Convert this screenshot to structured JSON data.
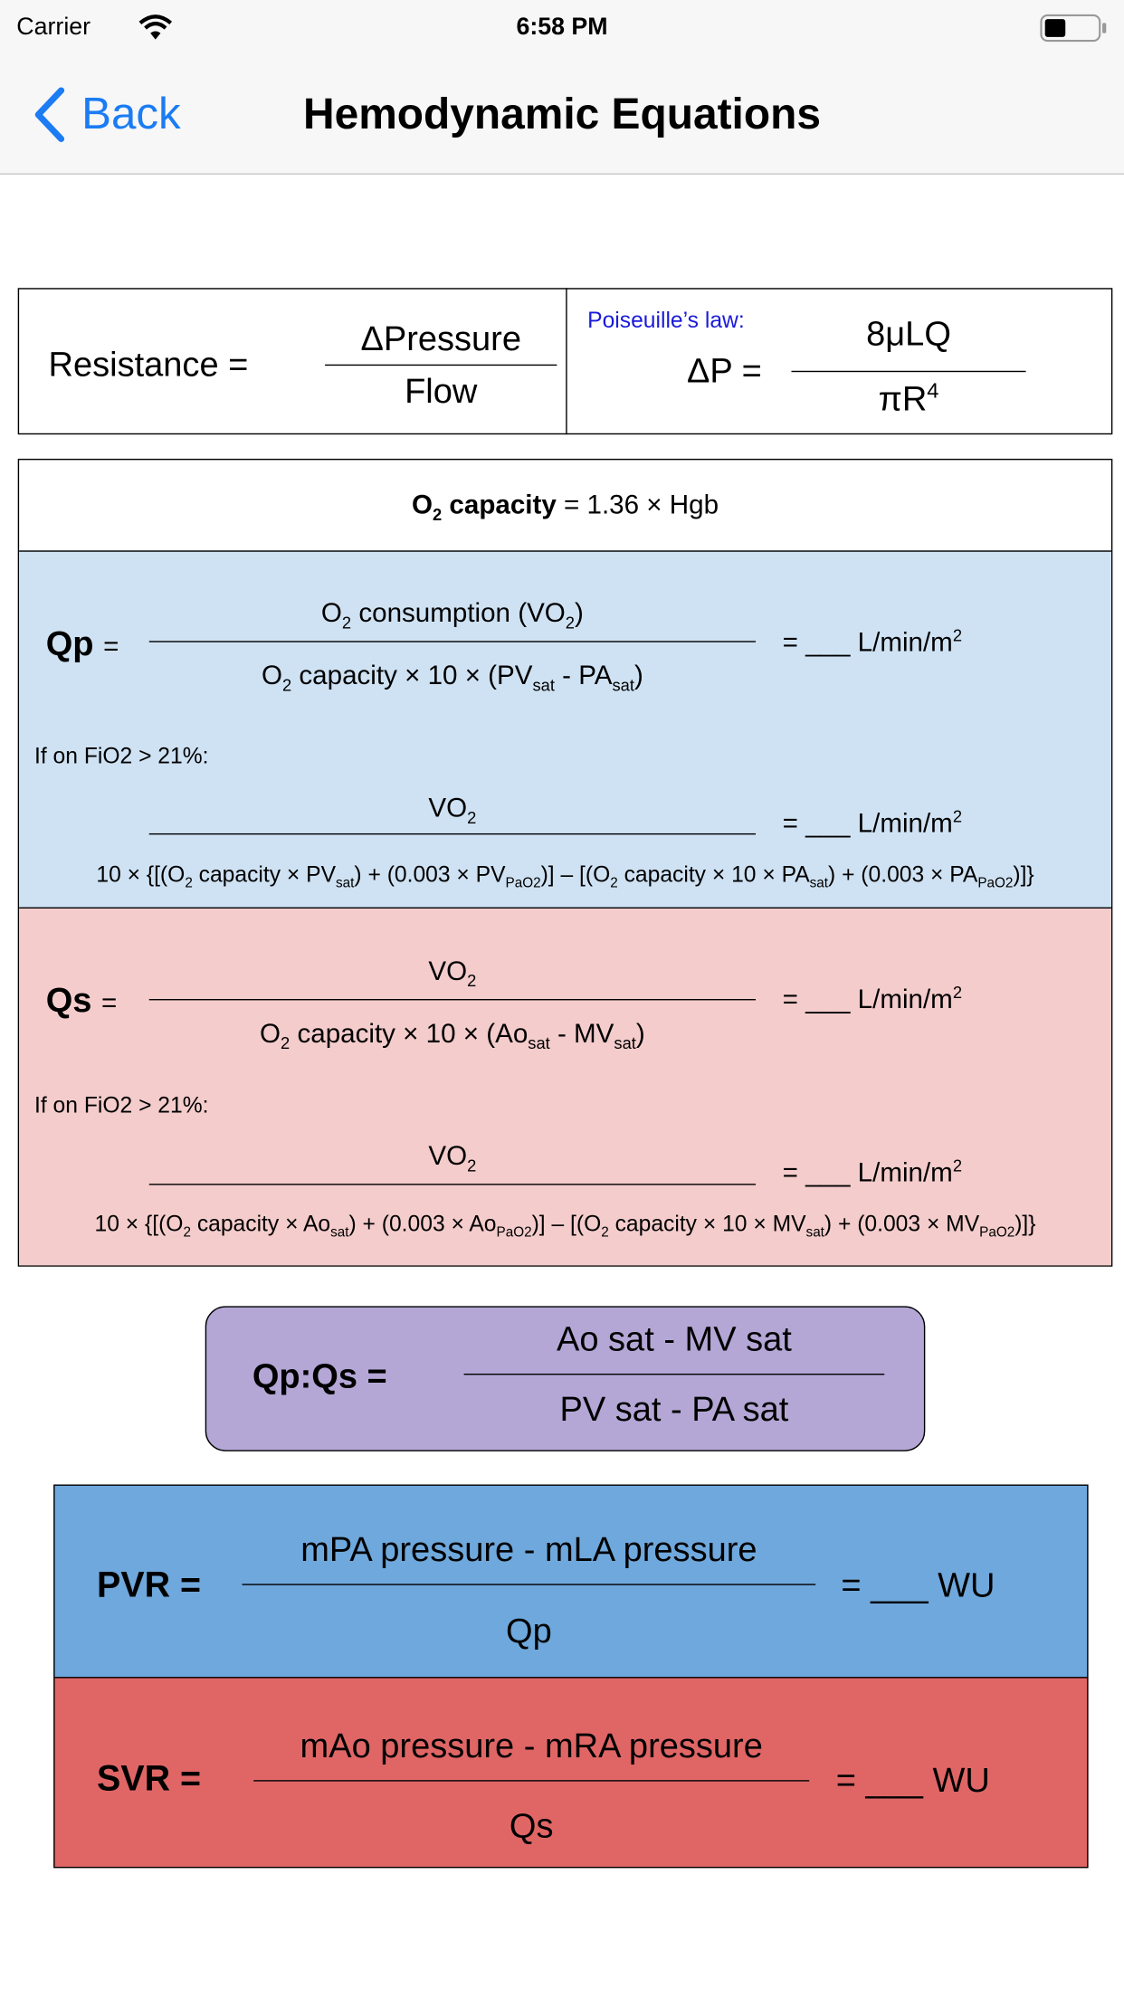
{
  "status_bar": {
    "carrier": "Carrier",
    "time": "6:58 PM"
  },
  "nav": {
    "back": "Back",
    "title": "Hemodynamic Equations"
  },
  "resistance": {
    "label": "Resistance =",
    "numerator": "ΔPressure",
    "denominator": "Flow"
  },
  "poiseuille": {
    "note": "Poiseuille’s law:",
    "label": "ΔP =",
    "numerator": "8μLQ",
    "denominator": "πR",
    "denominator_sup": "4"
  },
  "o2_capacity": {
    "label": [
      "O",
      "2",
      " capacity"
    ],
    "formula": "= 1.36 × Hgb"
  },
  "qp": {
    "label": "Qp",
    "equals": "=",
    "numerator": [
      "O",
      "2",
      " consumption (VO",
      "2",
      ")"
    ],
    "denominator": [
      "O",
      "2",
      " capacity × 10 × (PV",
      "sat",
      " - PA",
      "sat",
      ")"
    ],
    "result": "= ___ L/min/m",
    "result_sup": "2",
    "fio2_note": "If on FiO2 > 21%:",
    "alt_numerator": [
      "VO",
      "2"
    ],
    "alt_denominator": [
      "10 × {[(O",
      "2",
      " capacity × PV",
      "sat",
      ") + (0.003 × PV",
      "PaO2",
      ")] – [(O",
      "2",
      " capacity × 10 × PA",
      "sat",
      ") + (0.003 × PA",
      "PaO2",
      ")]}"
    ],
    "alt_result": "= ___ L/min/m",
    "alt_result_sup": "2"
  },
  "qs": {
    "label": "Qs",
    "equals": "=",
    "numerator": [
      "VO",
      "2"
    ],
    "denominator": [
      "O",
      "2",
      " capacity × 10 × (Ao",
      "sat",
      " - MV",
      "sat",
      ")"
    ],
    "result": "= ___ L/min/m",
    "result_sup": "2",
    "fio2_note": "If on FiO2 > 21%:",
    "alt_numerator": [
      "VO",
      "2"
    ],
    "alt_denominator": [
      "10 × {[(O",
      "2",
      " capacity × Ao",
      "sat",
      ") + (0.003 × Ao",
      "PaO2",
      ")] – [(O",
      "2",
      " capacity × 10 × MV",
      "sat",
      ") + (0.003 × MV",
      "PaO2",
      ")]}"
    ],
    "alt_result": "= ___ L/min/m",
    "alt_result_sup": "2"
  },
  "qp_qs": {
    "label": "Qp:Qs =",
    "numerator": "Ao sat - MV sat",
    "denominator": "PV sat - PA sat"
  },
  "pvr": {
    "label": "PVR =",
    "numerator": "mPA pressure - mLA pressure",
    "denominator": "Qp",
    "result": "= ___ WU"
  },
  "svr": {
    "label": "SVR =",
    "numerator": "mAo pressure - mRA pressure",
    "denominator": "Qs",
    "result": "= ___ WU"
  }
}
